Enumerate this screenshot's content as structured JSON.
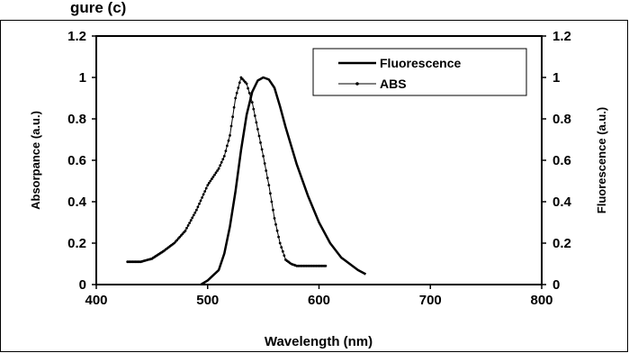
{
  "header_fragment": "gure (c)",
  "chart_data": {
    "type": "line",
    "title": "",
    "xlabel": "Wavelength (nm)",
    "ylabel": "Absorpance  (a.u.)",
    "y2label": "Fluorescence (a.u.)",
    "xlim": [
      400,
      800
    ],
    "ylim": [
      0,
      1.2
    ],
    "y2lim": [
      0,
      1.2
    ],
    "x_ticks": [
      400,
      500,
      600,
      700,
      800
    ],
    "x_tick_labels": [
      "400",
      "500",
      "600",
      "700",
      "800"
    ],
    "y_ticks": [
      0,
      0.2,
      0.4,
      0.6,
      0.8,
      1.0,
      1.2
    ],
    "y_tick_labels": [
      "0",
      "0.2",
      "0.4",
      "0.6",
      "0.8",
      "1",
      "1.2"
    ],
    "grid": false,
    "legend_position": "top-right",
    "series": [
      {
        "name": "Fluorescence",
        "style": "solid",
        "color": "#000000",
        "points": [
          [
            494,
            0.0
          ],
          [
            500,
            0.02
          ],
          [
            510,
            0.07
          ],
          [
            515,
            0.15
          ],
          [
            520,
            0.28
          ],
          [
            525,
            0.45
          ],
          [
            530,
            0.65
          ],
          [
            535,
            0.82
          ],
          [
            540,
            0.93
          ],
          [
            545,
            0.985
          ],
          [
            550,
            1.0
          ],
          [
            555,
            0.99
          ],
          [
            560,
            0.95
          ],
          [
            565,
            0.86
          ],
          [
            570,
            0.76
          ],
          [
            580,
            0.58
          ],
          [
            590,
            0.43
          ],
          [
            600,
            0.3
          ],
          [
            610,
            0.2
          ],
          [
            620,
            0.13
          ],
          [
            630,
            0.09
          ],
          [
            635,
            0.07
          ],
          [
            642,
            0.05
          ]
        ]
      },
      {
        "name": "ABS",
        "style": "markers",
        "color": "#000000",
        "points": [
          [
            428,
            0.11
          ],
          [
            440,
            0.11
          ],
          [
            450,
            0.125
          ],
          [
            460,
            0.16
          ],
          [
            470,
            0.2
          ],
          [
            480,
            0.26
          ],
          [
            490,
            0.36
          ],
          [
            500,
            0.48
          ],
          [
            510,
            0.56
          ],
          [
            515,
            0.62
          ],
          [
            520,
            0.72
          ],
          [
            525,
            0.9
          ],
          [
            530,
            1.0
          ],
          [
            535,
            0.97
          ],
          [
            540,
            0.88
          ],
          [
            545,
            0.75
          ],
          [
            550,
            0.62
          ],
          [
            555,
            0.48
          ],
          [
            560,
            0.32
          ],
          [
            565,
            0.2
          ],
          [
            570,
            0.12
          ],
          [
            575,
            0.1
          ],
          [
            580,
            0.09
          ],
          [
            590,
            0.09
          ],
          [
            600,
            0.09
          ],
          [
            606,
            0.09
          ]
        ]
      }
    ]
  }
}
